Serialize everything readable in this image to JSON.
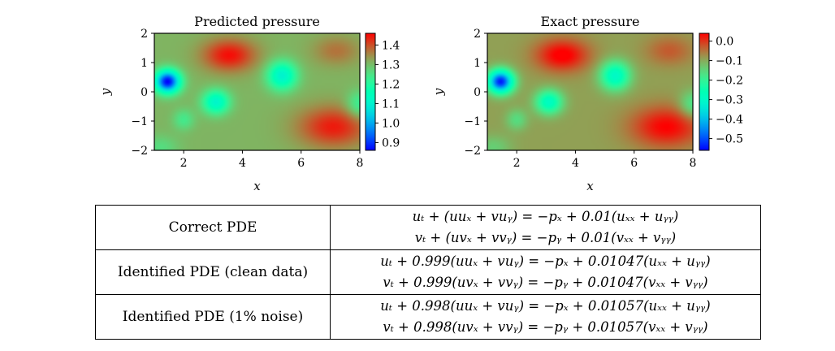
{
  "chart_data": [
    {
      "type": "heatmap",
      "title": "Predicted pressure",
      "xlabel": "x",
      "ylabel": "y",
      "xlim": [
        1,
        8
      ],
      "ylim": [
        -2,
        2
      ],
      "xticks": [
        2,
        4,
        6,
        8
      ],
      "xtick_labels": [
        "2",
        "4",
        "6",
        "8"
      ],
      "yticks": [
        2,
        1,
        0,
        -1,
        -2
      ],
      "ytick_labels": [
        "2",
        "1",
        "0",
        "−1",
        "−2"
      ],
      "colormap": "rainbow",
      "colorbar": {
        "range": [
          0.86,
          1.46
        ],
        "ticks": [
          1.4,
          1.3,
          1.2,
          1.1,
          1.0,
          0.9
        ],
        "tick_labels": [
          "1.4",
          "1.3",
          "1.2",
          "1.1",
          "1.0",
          "0.9"
        ]
      },
      "field": {
        "base": 1.31,
        "features": [
          {
            "x": 1.45,
            "y": 0.35,
            "amp": -0.45,
            "sx": 0.42,
            "sy": 0.38
          },
          {
            "x": 3.55,
            "y": 1.25,
            "amp": 0.14,
            "sx": 0.9,
            "sy": 0.55
          },
          {
            "x": 3.1,
            "y": -0.35,
            "amp": -0.2,
            "sx": 0.45,
            "sy": 0.4
          },
          {
            "x": 5.35,
            "y": 0.55,
            "amp": -0.21,
            "sx": 0.5,
            "sy": 0.48
          },
          {
            "x": 2.0,
            "y": -0.95,
            "amp": -0.07,
            "sx": 0.35,
            "sy": 0.35
          },
          {
            "x": 7.1,
            "y": -1.2,
            "amp": 0.13,
            "sx": 1.2,
            "sy": 0.7
          },
          {
            "x": 8.0,
            "y": -0.45,
            "amp": -0.1,
            "sx": 0.45,
            "sy": 0.45
          },
          {
            "x": 7.2,
            "y": 1.4,
            "amp": 0.06,
            "sx": 0.8,
            "sy": 0.5
          },
          {
            "x": 1.2,
            "y": -1.9,
            "amp": -0.05,
            "sx": 0.6,
            "sy": 0.4
          }
        ]
      }
    },
    {
      "type": "heatmap",
      "title": "Exact pressure",
      "xlabel": "x",
      "ylabel": "y",
      "xlim": [
        1,
        8
      ],
      "ylim": [
        -2,
        2
      ],
      "xticks": [
        2,
        4,
        6,
        8
      ],
      "xtick_labels": [
        "2",
        "4",
        "6",
        "8"
      ],
      "yticks": [
        2,
        1,
        0,
        -1,
        -2
      ],
      "ytick_labels": [
        "2",
        "1",
        "0",
        "−1",
        "−2"
      ],
      "colormap": "rainbow",
      "colorbar": {
        "range": [
          -0.56,
          0.04
        ],
        "ticks": [
          0.0,
          -0.1,
          -0.2,
          -0.3,
          -0.4,
          -0.5
        ],
        "tick_labels": [
          "0.0",
          "−0.1",
          "−0.2",
          "−0.3",
          "−0.4",
          "−0.5"
        ]
      },
      "field": {
        "base": -0.09,
        "features": [
          {
            "x": 1.45,
            "y": 0.35,
            "amp": -0.45,
            "sx": 0.42,
            "sy": 0.38
          },
          {
            "x": 3.55,
            "y": 1.25,
            "amp": 0.14,
            "sx": 0.9,
            "sy": 0.55
          },
          {
            "x": 3.1,
            "y": -0.35,
            "amp": -0.2,
            "sx": 0.45,
            "sy": 0.4
          },
          {
            "x": 5.35,
            "y": 0.55,
            "amp": -0.21,
            "sx": 0.5,
            "sy": 0.48
          },
          {
            "x": 2.0,
            "y": -0.95,
            "amp": -0.07,
            "sx": 0.35,
            "sy": 0.35
          },
          {
            "x": 7.1,
            "y": -1.2,
            "amp": 0.13,
            "sx": 1.2,
            "sy": 0.7
          },
          {
            "x": 8.0,
            "y": -0.45,
            "amp": -0.1,
            "sx": 0.45,
            "sy": 0.45
          },
          {
            "x": 7.2,
            "y": 1.4,
            "amp": 0.06,
            "sx": 0.8,
            "sy": 0.5
          },
          {
            "x": 1.2,
            "y": -1.9,
            "amp": -0.05,
            "sx": 0.6,
            "sy": 0.4
          }
        ]
      }
    }
  ],
  "table": {
    "rows": [
      {
        "label": "Correct PDE",
        "eq_u": "uₜ + (uuₓ + vuᵧ) = −pₓ + 0.01(uₓₓ + uᵧᵧ)",
        "eq_v": "vₜ + (uvₓ + vvᵧ) = −pᵧ + 0.01(vₓₓ + vᵧᵧ)"
      },
      {
        "label": "Identified PDE (clean data)",
        "eq_u": "uₜ + 0.999(uuₓ + vuᵧ) = −pₓ + 0.01047(uₓₓ + uᵧᵧ)",
        "eq_v": "vₜ + 0.999(uvₓ + vvᵧ) = −pᵧ + 0.01047(vₓₓ + vᵧᵧ)"
      },
      {
        "label": "Identified PDE (1% noise)",
        "eq_u": "uₜ + 0.998(uuₓ + vuᵧ) = −pₓ + 0.01057(uₓₓ + uᵧᵧ)",
        "eq_v": "vₜ + 0.998(uvₓ + vvᵧ) = −pᵧ + 0.01057(vₓₓ + vᵧᵧ)"
      }
    ]
  }
}
